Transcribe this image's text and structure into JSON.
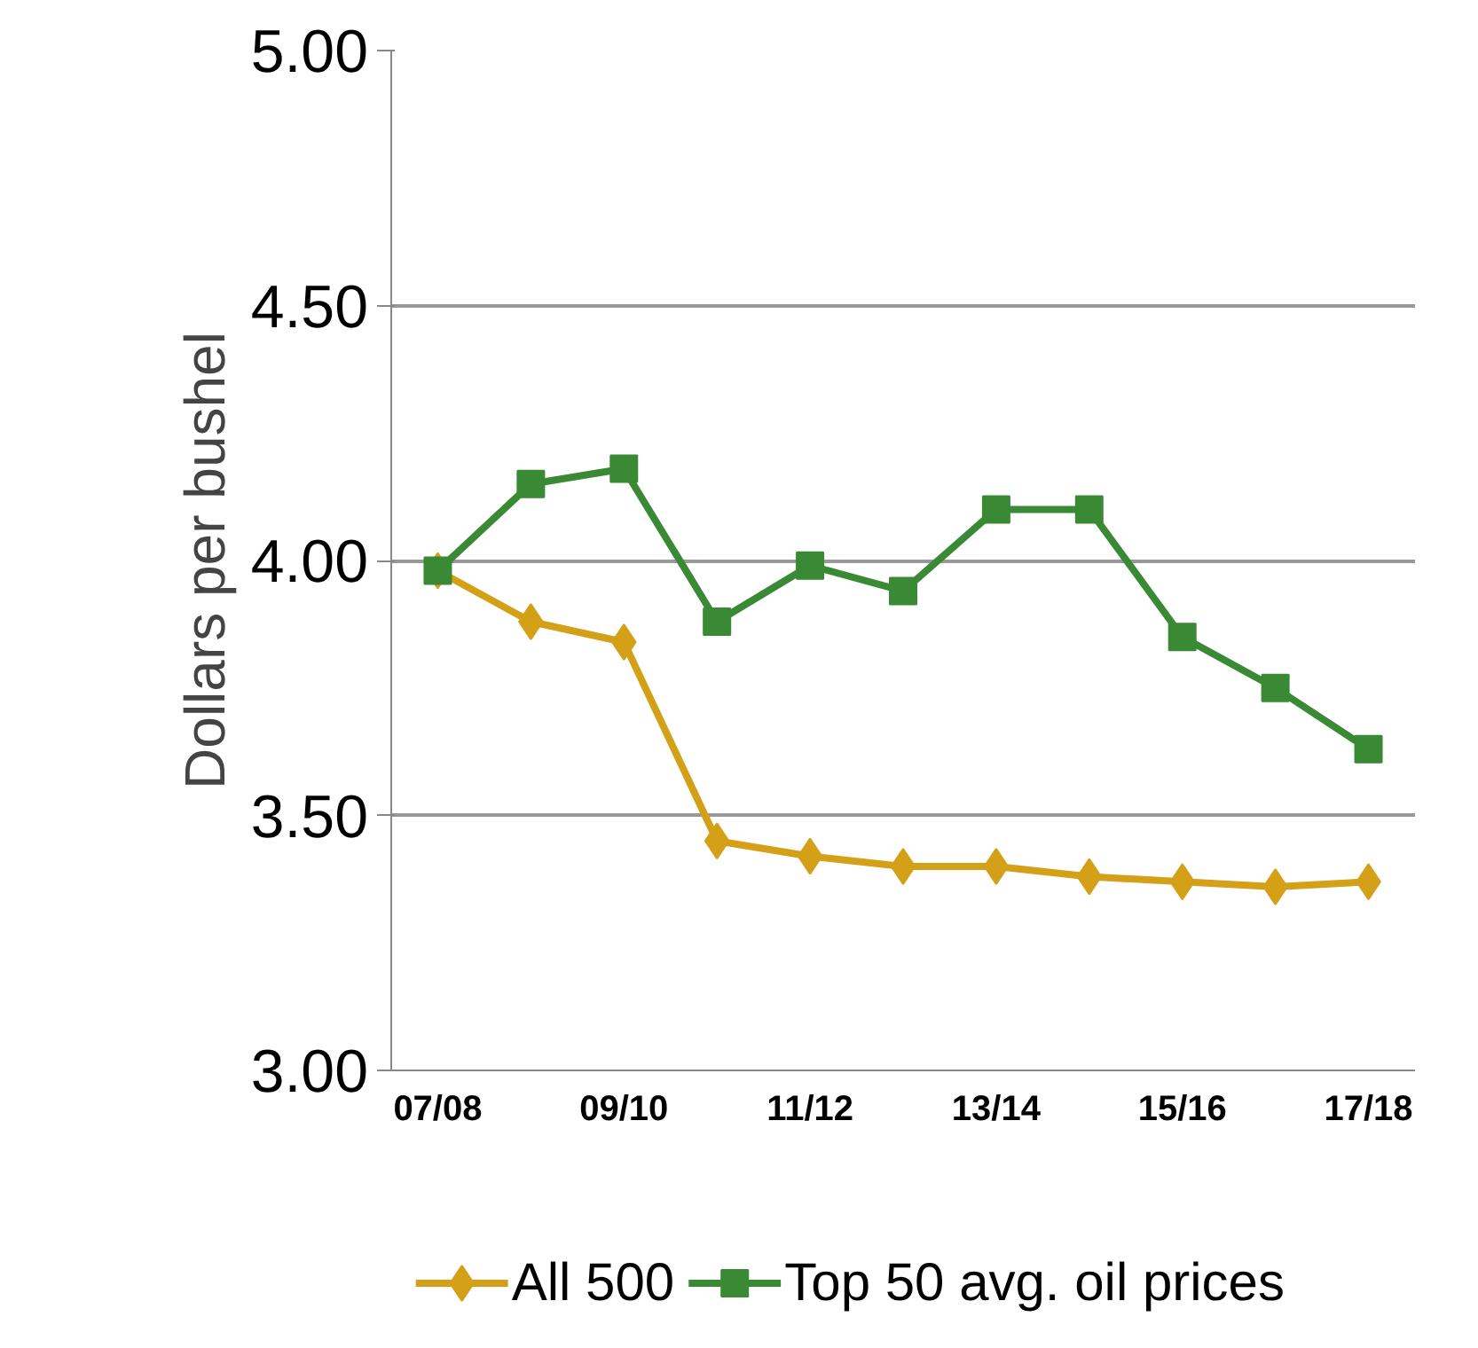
{
  "chart_data": {
    "type": "line",
    "ylabel": "Dollars per bushel",
    "categories": [
      "07/08",
      null,
      "09/10",
      null,
      "11/12",
      null,
      "13/14",
      null,
      "15/16",
      null,
      "17/18"
    ],
    "series": [
      {
        "name": "All 500",
        "color": "#d4a017",
        "marker": "diamond",
        "values": [
          3.98,
          3.88,
          3.84,
          3.45,
          3.42,
          3.4,
          3.4,
          3.38,
          3.37,
          3.36,
          3.37
        ]
      },
      {
        "name": "Top 50 avg. oil prices",
        "color": "#3a8a35",
        "marker": "square",
        "values": [
          3.98,
          4.15,
          4.18,
          3.88,
          3.99,
          3.94,
          4.1,
          4.1,
          3.85,
          3.75,
          3.63
        ]
      }
    ],
    "ylim": [
      3.0,
      5.0
    ],
    "yticks": [
      {
        "value": 3.0,
        "label": "3.00"
      },
      {
        "value": 3.5,
        "label": "3.50"
      },
      {
        "value": 4.0,
        "label": "4.00"
      },
      {
        "value": 4.5,
        "label": "4.50"
      },
      {
        "value": 5.0,
        "label": "5.00"
      }
    ],
    "grid": "y",
    "legend": "bottom",
    "line_style": "solid"
  }
}
